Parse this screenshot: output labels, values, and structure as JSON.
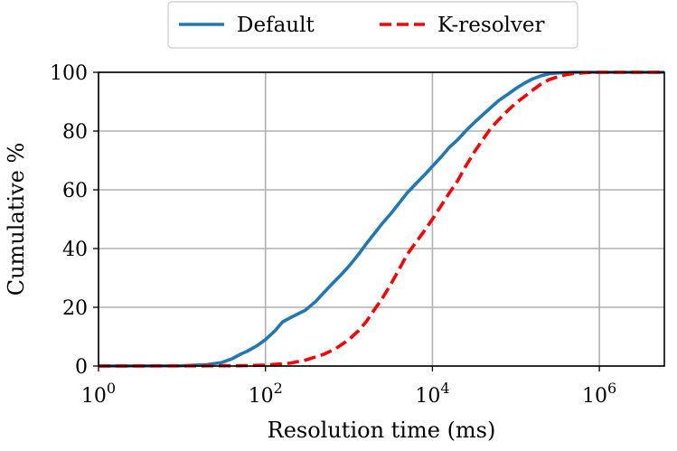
{
  "chart_data": {
    "type": "line",
    "title": "",
    "xlabel": "Resolution time (ms)",
    "ylabel": "Cumulative %",
    "xscale": "log",
    "xlim": [
      1,
      6000000
    ],
    "ylim": [
      0,
      100
    ],
    "grid": true,
    "legend": "top-center, outside plot, horizontal",
    "xticks": [
      {
        "value": 1,
        "base": "10",
        "exp": "0"
      },
      {
        "value": 100,
        "base": "10",
        "exp": "2"
      },
      {
        "value": 10000,
        "base": "10",
        "exp": "4"
      },
      {
        "value": 1000000,
        "base": "10",
        "exp": "6"
      }
    ],
    "yticks": [
      {
        "value": 0,
        "label": "0"
      },
      {
        "value": 20,
        "label": "20"
      },
      {
        "value": 40,
        "label": "40"
      },
      {
        "value": 60,
        "label": "60"
      },
      {
        "value": 80,
        "label": "80"
      },
      {
        "value": 100,
        "label": "100"
      }
    ],
    "series": [
      {
        "name": "Default",
        "color": "#1f77b4",
        "style": "solid",
        "points": [
          [
            1,
            0
          ],
          [
            10,
            0.1
          ],
          [
            20,
            0.5
          ],
          [
            30,
            1.2
          ],
          [
            40,
            2.5
          ],
          [
            50,
            4
          ],
          [
            60,
            5
          ],
          [
            80,
            7
          ],
          [
            100,
            9
          ],
          [
            130,
            12
          ],
          [
            160,
            15
          ],
          [
            200,
            16.5
          ],
          [
            300,
            19
          ],
          [
            400,
            22
          ],
          [
            500,
            25
          ],
          [
            630,
            28
          ],
          [
            800,
            31
          ],
          [
            1000,
            34
          ],
          [
            1300,
            38
          ],
          [
            1600,
            41.5
          ],
          [
            2000,
            45
          ],
          [
            2500,
            48.5
          ],
          [
            3200,
            52
          ],
          [
            4000,
            55.5
          ],
          [
            5000,
            59
          ],
          [
            6300,
            62
          ],
          [
            8000,
            65
          ],
          [
            10000,
            68
          ],
          [
            13000,
            71.5
          ],
          [
            16000,
            74.5
          ],
          [
            20000,
            77
          ],
          [
            25000,
            80
          ],
          [
            32000,
            83
          ],
          [
            40000,
            85.5
          ],
          [
            50000,
            88
          ],
          [
            63000,
            90.5
          ],
          [
            80000,
            92.5
          ],
          [
            100000,
            94.5
          ],
          [
            130000,
            96.5
          ],
          [
            160000,
            97.8
          ],
          [
            200000,
            98.8
          ],
          [
            250000,
            99.5
          ],
          [
            320000,
            99.8
          ],
          [
            500000,
            100
          ],
          [
            1000000,
            100
          ],
          [
            6000000,
            100
          ]
        ]
      },
      {
        "name": "K-resolver",
        "color": "#ff0000",
        "style": "dashed",
        "points": [
          [
            1,
            0
          ],
          [
            50,
            0.1
          ],
          [
            100,
            0.3
          ],
          [
            200,
            1
          ],
          [
            300,
            2
          ],
          [
            500,
            4
          ],
          [
            700,
            6
          ],
          [
            1000,
            9
          ],
          [
            1300,
            12
          ],
          [
            1600,
            15
          ],
          [
            2000,
            19
          ],
          [
            2500,
            23
          ],
          [
            3200,
            28
          ],
          [
            4000,
            33
          ],
          [
            5000,
            38
          ],
          [
            6300,
            42
          ],
          [
            8000,
            46
          ],
          [
            10000,
            50
          ],
          [
            13000,
            55
          ],
          [
            16000,
            59
          ],
          [
            20000,
            63
          ],
          [
            25000,
            68
          ],
          [
            32000,
            73
          ],
          [
            40000,
            77
          ],
          [
            50000,
            81
          ],
          [
            63000,
            84
          ],
          [
            80000,
            87
          ],
          [
            100000,
            89.5
          ],
          [
            130000,
            92
          ],
          [
            160000,
            94
          ],
          [
            200000,
            96
          ],
          [
            250000,
            97.5
          ],
          [
            320000,
            98.5
          ],
          [
            400000,
            99.2
          ],
          [
            500000,
            99.6
          ],
          [
            700000,
            99.9
          ],
          [
            1000000,
            100
          ],
          [
            6000000,
            100
          ]
        ]
      }
    ]
  }
}
